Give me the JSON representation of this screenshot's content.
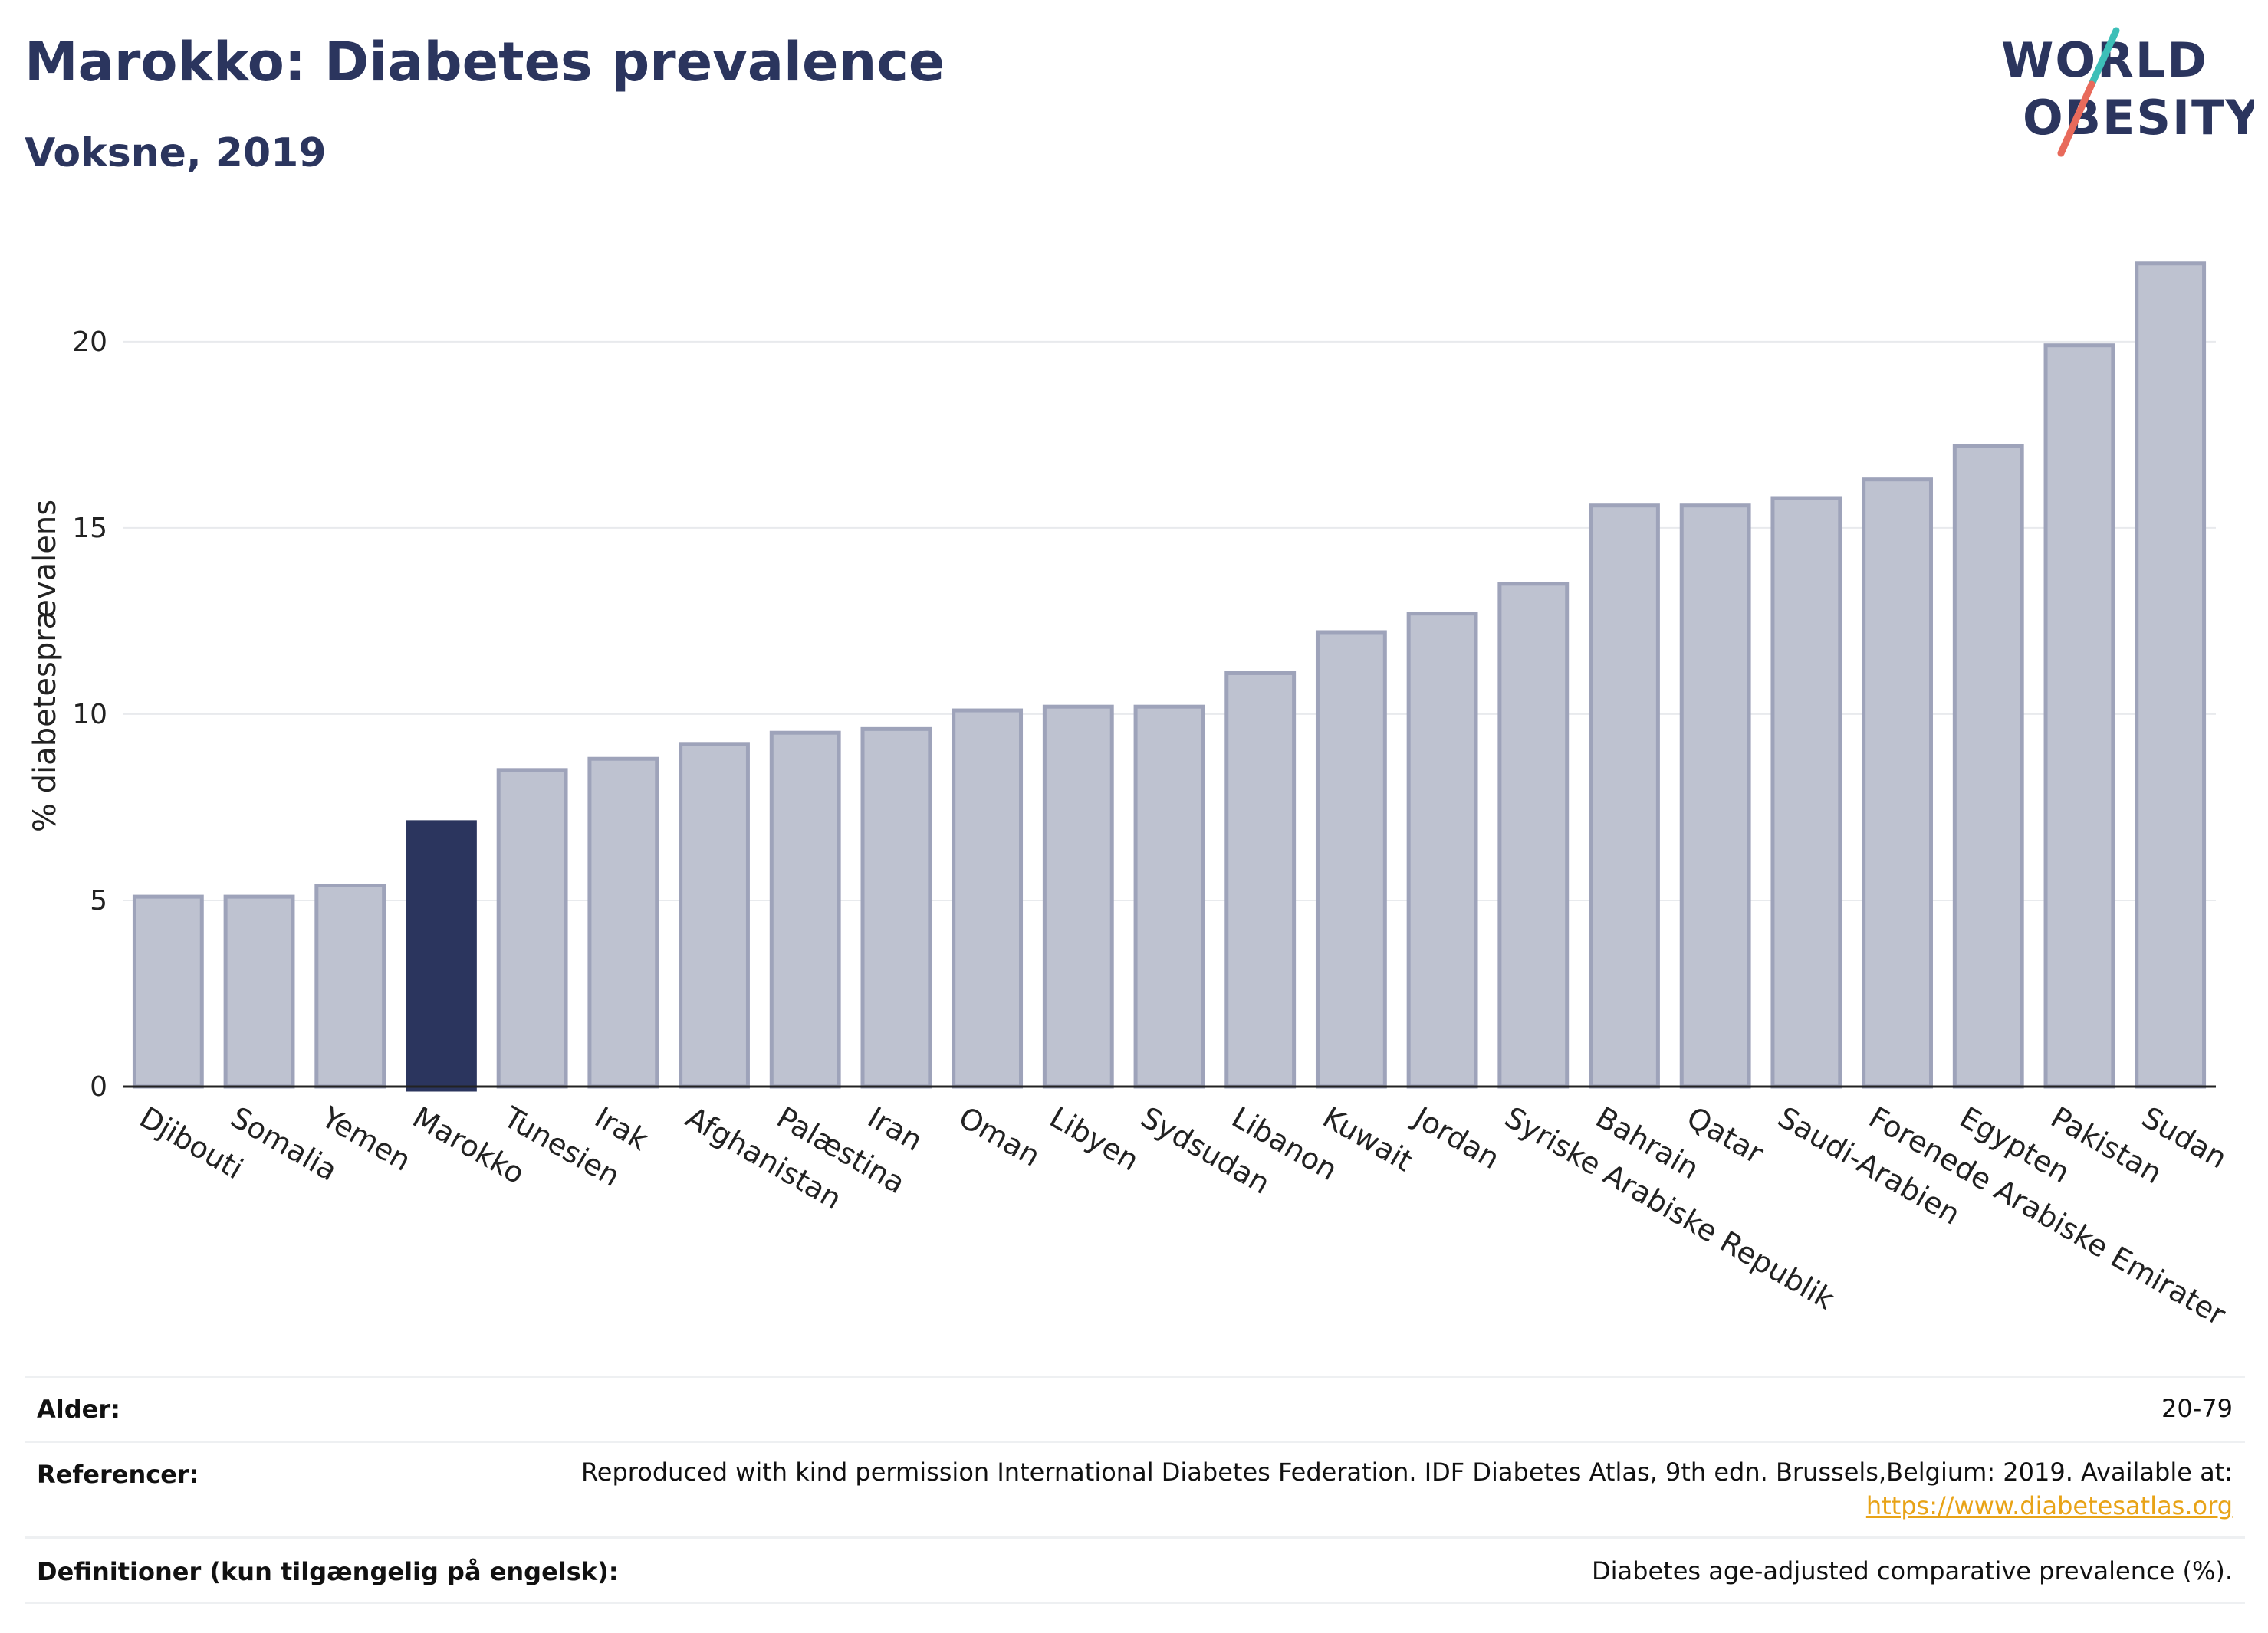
{
  "header": {
    "title": "Marokko: Diabetes prevalence",
    "subtitle": "Voksne, 2019"
  },
  "logo": {
    "line1": "WORLD",
    "line2": "OBESITY",
    "accent_colors": [
      "#3dbfb8",
      "#e86a5b"
    ]
  },
  "colors": {
    "bar": "#bec2d0",
    "bar_stroke": "#9ea3ba",
    "highlight": "#2b355e",
    "grid": "#e8eaed",
    "link": "#e8a317"
  },
  "chart_data": {
    "type": "bar",
    "categories": [
      "Djibouti",
      "Somalia",
      "Yemen",
      "Marokko",
      "Tunesien",
      "Irak",
      "Afghanistan",
      "Palæstina",
      "Iran",
      "Oman",
      "Libyen",
      "Sydsudan",
      "Libanon",
      "Kuwait",
      "Jordan",
      "Syriske Arabiske Republik",
      "Bahrain",
      "Qatar",
      "Saudi-Arabien",
      "Forenede Arabiske Emirater",
      "Egypten",
      "Pakistan",
      "Sudan"
    ],
    "values": [
      5.1,
      5.1,
      5.4,
      7.1,
      8.5,
      8.8,
      9.2,
      9.5,
      9.6,
      10.1,
      10.2,
      10.2,
      11.1,
      12.2,
      12.7,
      13.5,
      15.6,
      15.6,
      15.8,
      16.3,
      17.2,
      19.9,
      22.1
    ],
    "highlight": "Marokko",
    "ylabel": "% diabetesprævalens",
    "xlabel": "",
    "ylim": [
      0,
      23
    ],
    "yticks": [
      0,
      5,
      10,
      15,
      20
    ],
    "grid": true
  },
  "info": {
    "rows": [
      {
        "label": "Alder:",
        "value": "20-79"
      },
      {
        "label": "Referencer:",
        "value": "Reproduced with kind permission International Diabetes Federation. IDF Diabetes Atlas, 9th edn. Brussels,Belgium: 2019. Available at:",
        "link": "https://www.diabetesatlas.org"
      },
      {
        "label": "Definitioner (kun tilgængelig på engelsk):",
        "value": "Diabetes age-adjusted comparative prevalence (%)."
      }
    ]
  }
}
